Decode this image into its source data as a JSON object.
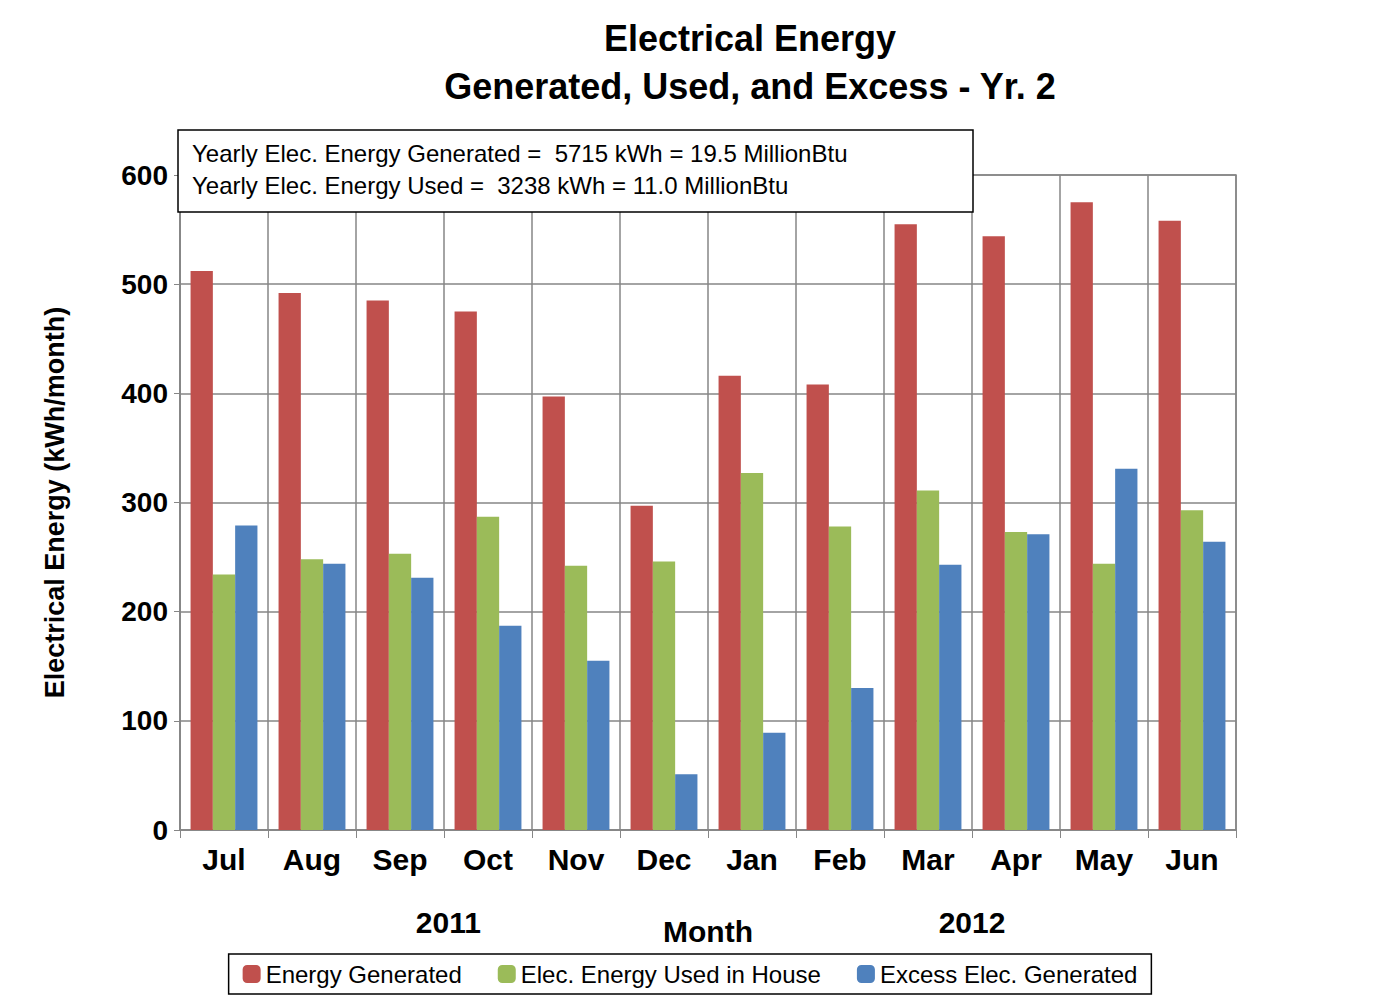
{
  "chart_data": {
    "type": "bar",
    "title": "Electrical Energy",
    "subtitle": "Generated, Used, and Excess - Yr. 2",
    "annotations": [
      "Yearly Elec. Energy Generated =  5715 kWh = 19.5 MillionBtu",
      "Yearly Elec. Energy Used =  3238 kWh = 11.0 MillionBtu"
    ],
    "x_group_labels": [
      "2011",
      "2012"
    ],
    "x_label": "Month",
    "y_label": "Electrical Energy (kWh/month)",
    "categories": [
      "Jul",
      "Aug",
      "Sep",
      "Oct",
      "Nov",
      "Dec",
      "Jan",
      "Feb",
      "Mar",
      "Apr",
      "May",
      "Jun"
    ],
    "series": [
      {
        "name": "Energy Generated",
        "color": "#c0504d",
        "values": [
          512,
          492,
          485,
          475,
          397,
          297,
          416,
          408,
          555,
          544,
          575,
          558
        ]
      },
      {
        "name": "Elec. Energy Used in House",
        "color": "#9bbb59",
        "values": [
          234,
          248,
          253,
          287,
          242,
          246,
          327,
          278,
          311,
          273,
          244,
          293
        ]
      },
      {
        "name": "Excess Elec. Generated",
        "color": "#4f81bd",
        "values": [
          279,
          244,
          231,
          187,
          155,
          51,
          89,
          130,
          243,
          271,
          331,
          264
        ]
      }
    ],
    "ylim": [
      0,
      600
    ],
    "yticks": [
      0,
      100,
      200,
      300,
      400,
      500,
      600
    ],
    "grid": true,
    "legend": "bottom"
  }
}
